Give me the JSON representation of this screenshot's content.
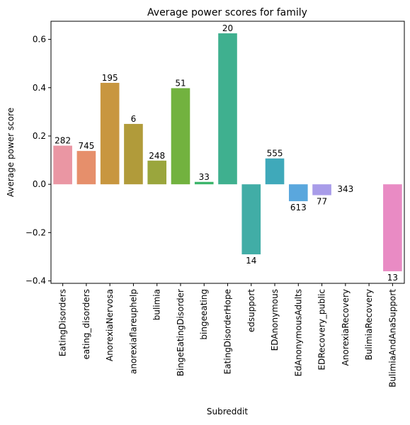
{
  "chart_data": {
    "type": "bar",
    "title": "Average power scores for family",
    "xlabel": "Subreddit",
    "ylabel": "Average power score",
    "ylim": [
      -0.41,
      0.675
    ],
    "yticks": [
      -0.4,
      -0.2,
      0.0,
      0.2,
      0.4,
      0.6
    ],
    "ytick_labels": [
      "−0.4",
      "−0.2",
      "0.0",
      "0.2",
      "0.4",
      "0.6"
    ],
    "grid": false,
    "categories": [
      "EatingDisorders",
      "eating_disorders",
      "AnorexiaNervosa",
      "anorexiaflareuphelp",
      "bulimia",
      "BingeEatingDisorder",
      "bingeeating",
      "EatingDisorderHope",
      "edsupport",
      "EDAnonymous",
      "EdAnonymousAdults",
      "EDRecovery_public",
      "AnorexiaRecovery",
      "BulimiaRecovery",
      "BulimiaAndAnaSupport"
    ],
    "values": [
      0.16,
      0.138,
      0.42,
      0.25,
      0.098,
      0.398,
      0.01,
      0.625,
      -0.29,
      0.107,
      -0.07,
      -0.045,
      0.0,
      0.0,
      -0.36
    ],
    "data_labels": [
      "282",
      "745",
      "195",
      "6",
      "248",
      "51",
      "33",
      "20",
      "14",
      "555",
      "613",
      "77",
      "343",
      "",
      "13"
    ],
    "colors": [
      "#ea96a3",
      "#e68f6b",
      "#c8963f",
      "#b19b3a",
      "#9aa63d",
      "#72b23f",
      "#3cb56b",
      "#3fb08f",
      "#41ada6",
      "#3fa9ba",
      "#5aa7dd",
      "#a89ce9",
      "#d48fea",
      "#e78ad7",
      "#e98bc4"
    ]
  }
}
